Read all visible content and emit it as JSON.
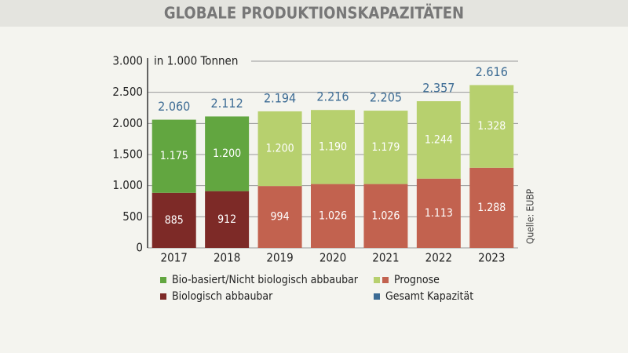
{
  "chart_data": {
    "type": "stacked_bar",
    "title": "GLOBALE PRODUKTIONSKAPAZITÄTEN",
    "y_label": "in 1.000 Tonnen",
    "source": "Quelle: EUBP",
    "categories": [
      "2017",
      "2018",
      "2019",
      "2020",
      "2021",
      "2022",
      "2023"
    ],
    "series": [
      {
        "name": "Biologisch abbaubar",
        "color": "#7d2a27",
        "colors": [
          "#7d2a27",
          "#7d2a27",
          "#c2624f",
          "#c2624f",
          "#c2624f",
          "#c2624f",
          "#c2624f"
        ],
        "values": [
          885,
          912,
          994,
          1026,
          1026,
          1113,
          1288
        ],
        "value_labels": [
          "885",
          "912",
          "994",
          "1.026",
          "1.026",
          "1.113",
          "1.288"
        ]
      },
      {
        "name": "Bio-basiert/Nicht biologisch abbaubar",
        "color": "#62a640",
        "colors": [
          "#62a640",
          "#62a640",
          "#b7d06e",
          "#b7d06e",
          "#b7d06e",
          "#b7d06e",
          "#b7d06e"
        ],
        "values": [
          1175,
          1200,
          1200,
          1190,
          1179,
          1244,
          1328
        ],
        "value_labels": [
          "1.175",
          "1.200",
          "1.200",
          "1.190",
          "1.179",
          "1.244",
          "1.328"
        ]
      },
      {
        "name": "Gesamt Kapazität",
        "color": "#3c6b94",
        "kind": "total",
        "values": [
          2060,
          2112,
          2194,
          2216,
          2205,
          2357,
          2616
        ],
        "value_labels": [
          "2.060",
          "2.112",
          "2.194",
          "2.216",
          "2.205",
          "2.357",
          "2.616"
        ]
      }
    ],
    "forecast_legend": {
      "name": "Prognose",
      "colors": [
        "#b7d06e",
        "#c2624f"
      ]
    },
    "ylim": [
      0,
      3000
    ],
    "yticks": [
      0,
      500,
      {
        "value": 1000,
        "label": "1.000"
      },
      {
        "value": 1500,
        "label": "1.500"
      },
      {
        "value": 2000,
        "label": "2.000"
      },
      {
        "value": 2500,
        "label": "2.500"
      },
      {
        "value": 3000,
        "label": "3.000"
      }
    ],
    "grid": true
  }
}
